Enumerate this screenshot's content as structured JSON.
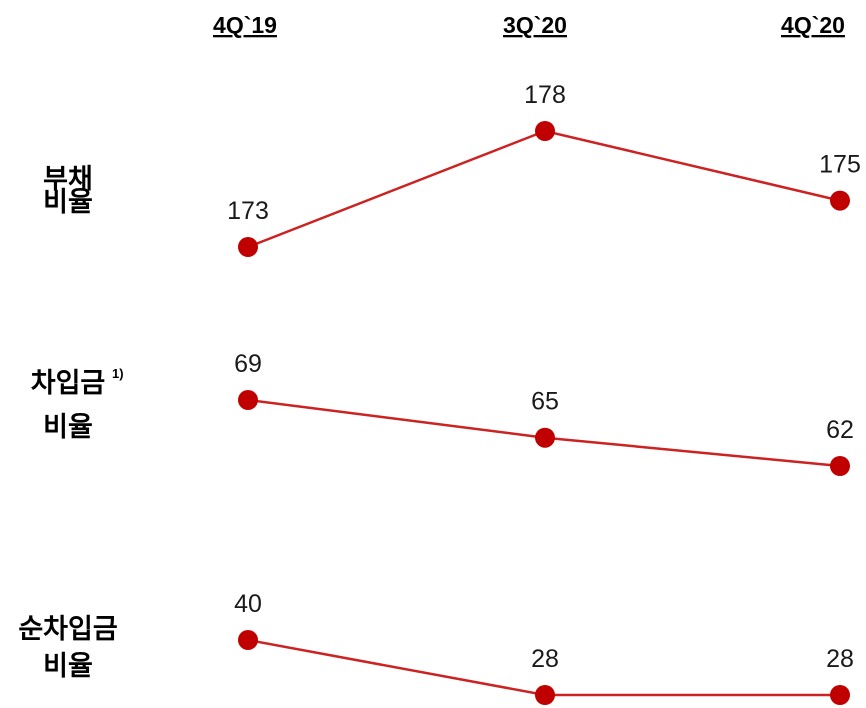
{
  "chart_data": {
    "type": "line",
    "categories": [
      "4Q`19",
      "3Q`20",
      "4Q`20"
    ],
    "series": [
      {
        "name": "부채|비율",
        "name_sup": "",
        "values": [
          173,
          178,
          175
        ]
      },
      {
        "name": "차입금|비율",
        "name_sup": "1)",
        "values": [
          69,
          65,
          62
        ]
      },
      {
        "name": "순차입금|비율",
        "name_sup": "",
        "values": [
          40,
          28,
          28
        ]
      }
    ],
    "colors": {
      "line": "#cc2222",
      "marker": "#c00000",
      "text": "#000000"
    }
  }
}
